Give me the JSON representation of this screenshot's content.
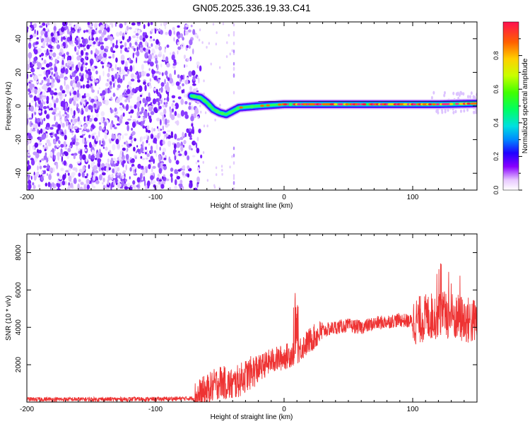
{
  "title": "GN05.2025.336.19.33.C41",
  "chart_data": [
    {
      "type": "heatmap",
      "xlabel": "Height of straight line (km)",
      "ylabel": "Frequency (Hz)",
      "xlim": [
        -200,
        150
      ],
      "ylim": [
        -50,
        50
      ],
      "xticks": [
        -200,
        -100,
        0,
        100
      ],
      "yticks": [
        -40,
        -20,
        0,
        20,
        40
      ],
      "colorbar": {
        "label": "Normalized spectral amplitude",
        "range": [
          0,
          1
        ],
        "ticks": [
          "0.0",
          "0.2",
          "0.4",
          "0.6",
          "0.8"
        ]
      },
      "signal_track": [
        {
          "x": -72,
          "y": 6
        },
        {
          "x": -65,
          "y": 5
        },
        {
          "x": -60,
          "y": 2
        },
        {
          "x": -55,
          "y": -2
        },
        {
          "x": -50,
          "y": -4
        },
        {
          "x": -45,
          "y": -5
        },
        {
          "x": -40,
          "y": -3
        },
        {
          "x": -35,
          "y": -1
        },
        {
          "x": -20,
          "y": 0
        },
        {
          "x": 0,
          "y": 1
        },
        {
          "x": 20,
          "y": 1
        },
        {
          "x": 50,
          "y": 1
        },
        {
          "x": 80,
          "y": 1
        },
        {
          "x": 100,
          "y": 1
        },
        {
          "x": 120,
          "y": 1
        },
        {
          "x": 150,
          "y": 1.5
        }
      ],
      "noise_region": [
        -200,
        -70
      ],
      "grid": false
    },
    {
      "type": "line",
      "xlabel": "Height of straight line (km)",
      "ylabel": "SNR (10 * v/v)",
      "xlim": [
        -200,
        150
      ],
      "ylim": [
        0,
        9000
      ],
      "xticks": [
        -200,
        -100,
        0,
        100
      ],
      "yticks": [
        2000,
        4000,
        6000,
        8000
      ],
      "series": [
        {
          "color": "#ee3333",
          "envelope": [
            {
              "x": -200,
              "y": 150
            },
            {
              "x": -150,
              "y": 150
            },
            {
              "x": -100,
              "y": 160
            },
            {
              "x": -70,
              "y": 200
            },
            {
              "x": -60,
              "y": 600
            },
            {
              "x": -50,
              "y": 1100
            },
            {
              "x": -40,
              "y": 900
            },
            {
              "x": -30,
              "y": 1400
            },
            {
              "x": -20,
              "y": 1800
            },
            {
              "x": -10,
              "y": 2200
            },
            {
              "x": 0,
              "y": 2400
            },
            {
              "x": 10,
              "y": 2700
            },
            {
              "x": 20,
              "y": 3300
            },
            {
              "x": 30,
              "y": 3800
            },
            {
              "x": 40,
              "y": 4000
            },
            {
              "x": 50,
              "y": 4100
            },
            {
              "x": 60,
              "y": 4000
            },
            {
              "x": 70,
              "y": 4200
            },
            {
              "x": 80,
              "y": 4300
            },
            {
              "x": 90,
              "y": 4400
            },
            {
              "x": 100,
              "y": 4300
            },
            {
              "x": 110,
              "y": 4500
            },
            {
              "x": 120,
              "y": 4700
            },
            {
              "x": 130,
              "y": 4600
            },
            {
              "x": 140,
              "y": 4400
            },
            {
              "x": 150,
              "y": 4300
            }
          ]
        }
      ],
      "grid": false
    }
  ]
}
